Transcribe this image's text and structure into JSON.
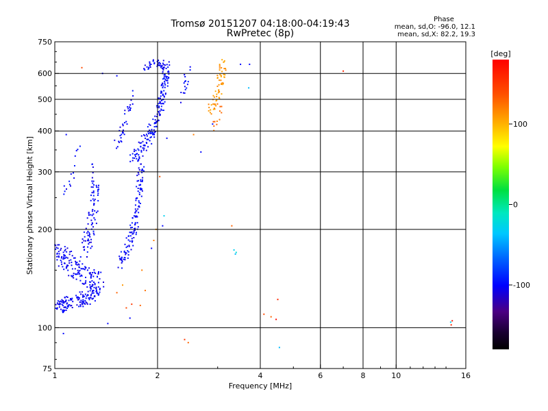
{
  "chart_data": {
    "type": "scatter",
    "title": "Tromsø 20151207 04:18:00-04:19:43",
    "subtitle": "RwPretec (8p)",
    "xlabel": "Frequency [MHz]",
    "ylabel": "Stationary phase Virtual Height [km]",
    "x_scale": "log",
    "y_scale": "log",
    "xlim": [
      1,
      16
    ],
    "ylim": [
      75,
      750
    ],
    "x_ticks": [
      1,
      2,
      4,
      6,
      8,
      10,
      16
    ],
    "x_tick_labels": [
      "1",
      "2",
      "4",
      "6",
      "8",
      "10",
      "16"
    ],
    "x_grid_lines": [
      2,
      4,
      6,
      8,
      10
    ],
    "y_ticks": [
      75,
      100,
      200,
      300,
      400,
      500,
      600,
      750
    ],
    "y_tick_labels": [
      "75",
      "100",
      "200",
      "300",
      "400",
      "500",
      "600",
      "750"
    ],
    "y_grid_lines": [
      100,
      200,
      300,
      400,
      500,
      600
    ],
    "grid": true,
    "stats": {
      "heading": "Phase",
      "line1": "mean, sd,O: -96.0, 12.1",
      "line2": "mean, sd,X: 82.2, 19.3"
    },
    "colorbar": {
      "title": "[deg]",
      "range": [
        -180,
        180
      ],
      "tick_values": [
        100,
        0,
        -100
      ],
      "tick_labels": [
        "100",
        "0",
        "-100"
      ]
    },
    "traces": [
      {
        "x": [
          1.02,
          1.06,
          1.12,
          1.2,
          1.28,
          1.34
        ],
        "y": [
          115,
          118,
          120,
          122,
          125,
          130
        ],
        "spread": 0.03,
        "spread_y": 0.05,
        "density": 28,
        "phase": -103
      },
      {
        "x": [
          1.01,
          1.05,
          1.1,
          1.16,
          1.22,
          1.3,
          1.36
        ],
        "y": [
          170,
          165,
          160,
          150,
          145,
          140,
          135
        ],
        "spread": 0.04,
        "spread_y": 0.07,
        "density": 26,
        "phase": -102
      },
      {
        "x": [
          1.22,
          1.25,
          1.27,
          1.3,
          1.32,
          1.3
        ],
        "y": [
          170,
          185,
          200,
          225,
          260,
          305
        ],
        "spread": 0.03,
        "spread_y": 0.05,
        "density": 18,
        "phase": -101
      },
      {
        "x": [
          1.55,
          1.62,
          1.68,
          1.72,
          1.74,
          1.77,
          1.8
        ],
        "y": [
          155,
          170,
          190,
          210,
          240,
          280,
          320
        ],
        "spread": 0.025,
        "spread_y": 0.04,
        "density": 22,
        "phase": -100
      },
      {
        "x": [
          1.7,
          1.8,
          1.9,
          2.0,
          2.05,
          2.1,
          2.12
        ],
        "y": [
          330,
          360,
          390,
          430,
          490,
          560,
          630
        ],
        "spread": 0.025,
        "spread_y": 0.05,
        "density": 30,
        "phase": -100
      },
      {
        "x": [
          1.52,
          1.58,
          1.62,
          1.68
        ],
        "y": [
          360,
          400,
          450,
          520
        ],
        "spread": 0.02,
        "spread_y": 0.04,
        "density": 12,
        "phase": -101
      },
      {
        "x": [
          1.84,
          1.9,
          1.97,
          2.05,
          2.1
        ],
        "y": [
          610,
          640,
          650,
          640,
          620
        ],
        "spread": 0.02,
        "spread_y": 0.02,
        "density": 10,
        "phase": -101
      },
      {
        "x": [
          2.35,
          2.4,
          2.5
        ],
        "y": [
          500,
          560,
          640
        ],
        "spread": 0.02,
        "spread_y": 0.04,
        "density": 8,
        "phase": -100
      },
      {
        "x": [
          2.85,
          2.95,
          3.05,
          3.08,
          3.1
        ],
        "y": [
          460,
          500,
          550,
          600,
          650
        ],
        "spread": 0.025,
        "spread_y": 0.04,
        "density": 16,
        "phase": 110
      },
      {
        "x": [
          2.95,
          3.0,
          3.05
        ],
        "y": [
          410,
          440,
          470
        ],
        "spread": 0.02,
        "spread_y": 0.03,
        "density": 6,
        "phase": 125
      },
      {
        "x": [
          1.06,
          1.1,
          1.15,
          1.18
        ],
        "y": [
          260,
          280,
          310,
          360
        ],
        "spread": 0.02,
        "spread_y": 0.05,
        "density": 5,
        "phase": -100
      }
    ],
    "points": [
      {
        "x": 1.2,
        "y": 625,
        "phase": 140
      },
      {
        "x": 1.52,
        "y": 590,
        "phase": -100
      },
      {
        "x": 1.38,
        "y": 600,
        "phase": -100
      },
      {
        "x": 1.08,
        "y": 390,
        "phase": -100
      },
      {
        "x": 1.43,
        "y": 103,
        "phase": -100
      },
      {
        "x": 1.06,
        "y": 96,
        "phase": -100
      },
      {
        "x": 1.66,
        "y": 107,
        "phase": -100
      },
      {
        "x": 1.62,
        "y": 115,
        "phase": 140
      },
      {
        "x": 1.68,
        "y": 118,
        "phase": 150
      },
      {
        "x": 1.52,
        "y": 128,
        "phase": 130
      },
      {
        "x": 1.58,
        "y": 135,
        "phase": 110
      },
      {
        "x": 1.8,
        "y": 150,
        "phase": 120
      },
      {
        "x": 1.84,
        "y": 130,
        "phase": 125
      },
      {
        "x": 1.78,
        "y": 117,
        "phase": 130
      },
      {
        "x": 1.92,
        "y": 175,
        "phase": -100
      },
      {
        "x": 1.95,
        "y": 185,
        "phase": 120
      },
      {
        "x": 1.98,
        "y": 200,
        "phase": 110
      },
      {
        "x": 2.03,
        "y": 290,
        "phase": 135
      },
      {
        "x": 2.07,
        "y": 205,
        "phase": -100
      },
      {
        "x": 2.09,
        "y": 220,
        "phase": -30
      },
      {
        "x": 2.13,
        "y": 380,
        "phase": -100
      },
      {
        "x": 2.4,
        "y": 92,
        "phase": 150
      },
      {
        "x": 2.46,
        "y": 90,
        "phase": 130
      },
      {
        "x": 2.55,
        "y": 390,
        "phase": 120
      },
      {
        "x": 2.68,
        "y": 345,
        "phase": -100
      },
      {
        "x": 2.9,
        "y": 420,
        "phase": -100
      },
      {
        "x": 3.3,
        "y": 205,
        "phase": 130
      },
      {
        "x": 3.35,
        "y": 173,
        "phase": -30
      },
      {
        "x": 3.4,
        "y": 170,
        "phase": -20
      },
      {
        "x": 3.38,
        "y": 168,
        "phase": -40
      },
      {
        "x": 3.5,
        "y": 640,
        "phase": -100
      },
      {
        "x": 3.7,
        "y": 542,
        "phase": -40
      },
      {
        "x": 3.72,
        "y": 640,
        "phase": -100
      },
      {
        "x": 4.1,
        "y": 110,
        "phase": 140
      },
      {
        "x": 4.3,
        "y": 108,
        "phase": 130
      },
      {
        "x": 4.45,
        "y": 106,
        "phase": 175
      },
      {
        "x": 4.5,
        "y": 122,
        "phase": 160
      },
      {
        "x": 4.55,
        "y": 87,
        "phase": -40
      },
      {
        "x": 7.0,
        "y": 610,
        "phase": 160
      },
      {
        "x": 14.45,
        "y": 104,
        "phase": -30
      },
      {
        "x": 14.6,
        "y": 105,
        "phase": 170
      },
      {
        "x": 14.5,
        "y": 102,
        "phase": 160
      }
    ]
  }
}
